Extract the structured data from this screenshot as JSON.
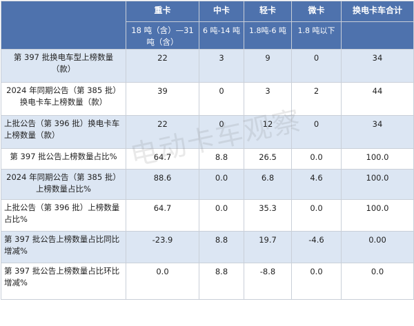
{
  "header": {
    "columns": [
      "重卡",
      "中卡",
      "轻卡",
      "微卡",
      "换电卡车合计"
    ],
    "subcolumns": [
      "18 吨（含）—31 吨（含）",
      "6 吨-14 吨",
      "1.8吨-6 吨",
      "1.8 吨以下",
      ""
    ]
  },
  "rows": [
    {
      "label": "第 397 批换电车型上榜数量（款）",
      "values": [
        "22",
        "3",
        "9",
        "0",
        "34"
      ]
    },
    {
      "label": "2024 年同期公告（第 385 批）换电卡车上榜数量（款）",
      "values": [
        "39",
        "0",
        "3",
        "2",
        "44"
      ]
    },
    {
      "label": "上批公告（第 396 批）换电卡车上榜数量（款）",
      "values": [
        "22",
        "0",
        "12",
        "0",
        "34"
      ]
    },
    {
      "label": "第 397 批公告上榜数量占比%",
      "values": [
        "64.7",
        "8.8",
        "26.5",
        "0.0",
        "100.0"
      ]
    },
    {
      "label": "2024 年同期公告（第 385 批）上榜数量占比%",
      "values": [
        "88.6",
        "0.0",
        "6.8",
        "4.6",
        "100.0"
      ]
    },
    {
      "label": "上批公告（第 396 批）上榜数量占比%",
      "values": [
        "64.7",
        "0.0",
        "35.3",
        "0.0",
        "100.0"
      ]
    },
    {
      "label": "第 397 批公告上榜数量占比同比增减%",
      "values": [
        "-23.9",
        "8.8",
        "19.7",
        "-4.6",
        "0.00"
      ]
    },
    {
      "label": "第 397 批公告上榜数量占比环比增减%",
      "values": [
        "0.0",
        "8.8",
        "-8.8",
        "0.0",
        "0.0"
      ]
    }
  ],
  "watermark": "电动卡车观察"
}
